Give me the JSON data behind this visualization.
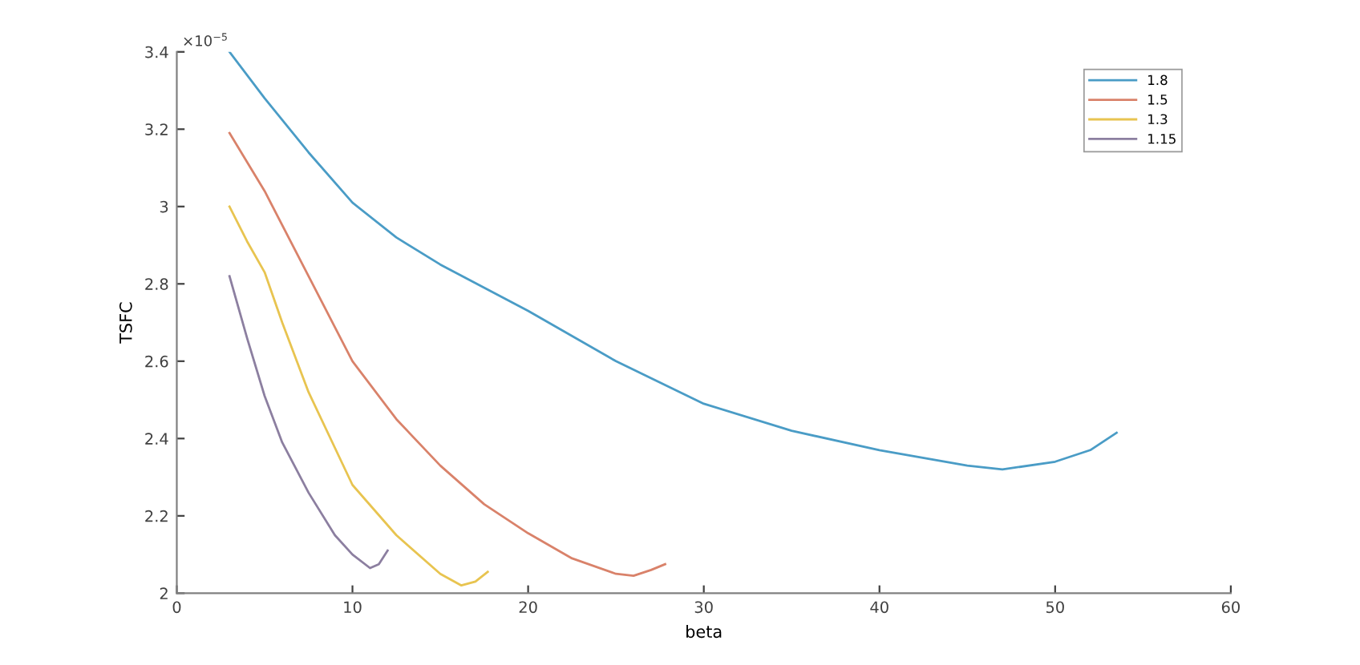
{
  "chart_data": {
    "type": "line",
    "xlabel": "beta",
    "ylabel": "TSFC",
    "annotations": [
      "×10$^{−5}$"
    ],
    "xlim": [
      0,
      60
    ],
    "xticks": [
      0,
      10,
      20,
      30,
      40,
      50,
      60
    ],
    "ylim": [
      2,
      3.4
    ],
    "yticks": [
      2,
      2.2,
      2.4,
      2.6,
      2.8,
      3,
      3.2,
      3.4
    ],
    "grid": false,
    "legend": "top right",
    "line_style": "solid",
    "series": [
      {
        "name": "1.8",
        "color": "#4a9cc6",
        "x": [
          3,
          5,
          7.5,
          10,
          12.5,
          15,
          20,
          25,
          30,
          35,
          40,
          45,
          47,
          50,
          52,
          53.5
        ],
        "values": [
          3.4,
          3.28,
          3.14,
          3.01,
          2.92,
          2.85,
          2.73,
          2.6,
          2.49,
          2.42,
          2.37,
          2.33,
          2.32,
          2.34,
          2.37,
          2.415
        ]
      },
      {
        "name": "1.5",
        "color": "#d9826a",
        "x": [
          3,
          5,
          7.5,
          10,
          12.5,
          15,
          17.5,
          20,
          22.5,
          25,
          26,
          27,
          27.8
        ],
        "values": [
          3.19,
          3.04,
          2.82,
          2.6,
          2.45,
          2.33,
          2.23,
          2.155,
          2.09,
          2.05,
          2.045,
          2.06,
          2.075
        ]
      },
      {
        "name": "1.3",
        "color": "#e8c450",
        "x": [
          3,
          4,
          5,
          6,
          7.5,
          10,
          12.5,
          15,
          16.2,
          17,
          17.7
        ],
        "values": [
          3.0,
          2.91,
          2.83,
          2.7,
          2.52,
          2.28,
          2.15,
          2.05,
          2.02,
          2.03,
          2.055
        ]
      },
      {
        "name": "1.15",
        "color": "#8c7fa0",
        "x": [
          3,
          4,
          5,
          6,
          7.5,
          9,
          10,
          11,
          11.5,
          12
        ],
        "values": [
          2.82,
          2.66,
          2.51,
          2.39,
          2.26,
          2.15,
          2.1,
          2.065,
          2.075,
          2.11
        ]
      }
    ]
  }
}
